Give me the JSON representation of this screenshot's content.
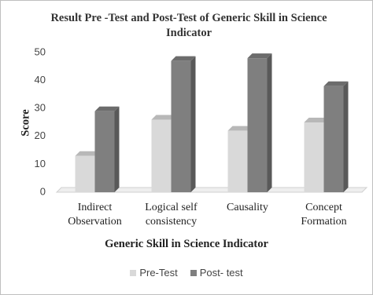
{
  "chart_data": {
    "type": "bar3d",
    "title": "Result Pre -Test and Post-Test of Generic Skill in Science Indicator",
    "x_label": "Generic Skill in Science Indicator",
    "y_label": "Score",
    "categories": [
      "Indirect Observation",
      "Logical self consistency",
      "Causality",
      "Concept Formation"
    ],
    "series": [
      {
        "name": "Pre-Test",
        "color": "#d9d9d9",
        "values": [
          13,
          26,
          22,
          25
        ]
      },
      {
        "name": "Post- test",
        "color": "#7f7f7f",
        "values": [
          29,
          47,
          48,
          38
        ]
      }
    ],
    "ylim": [
      0,
      50
    ],
    "yticks": [
      0,
      10,
      20,
      30,
      40,
      50
    ],
    "legend": "bottom"
  }
}
